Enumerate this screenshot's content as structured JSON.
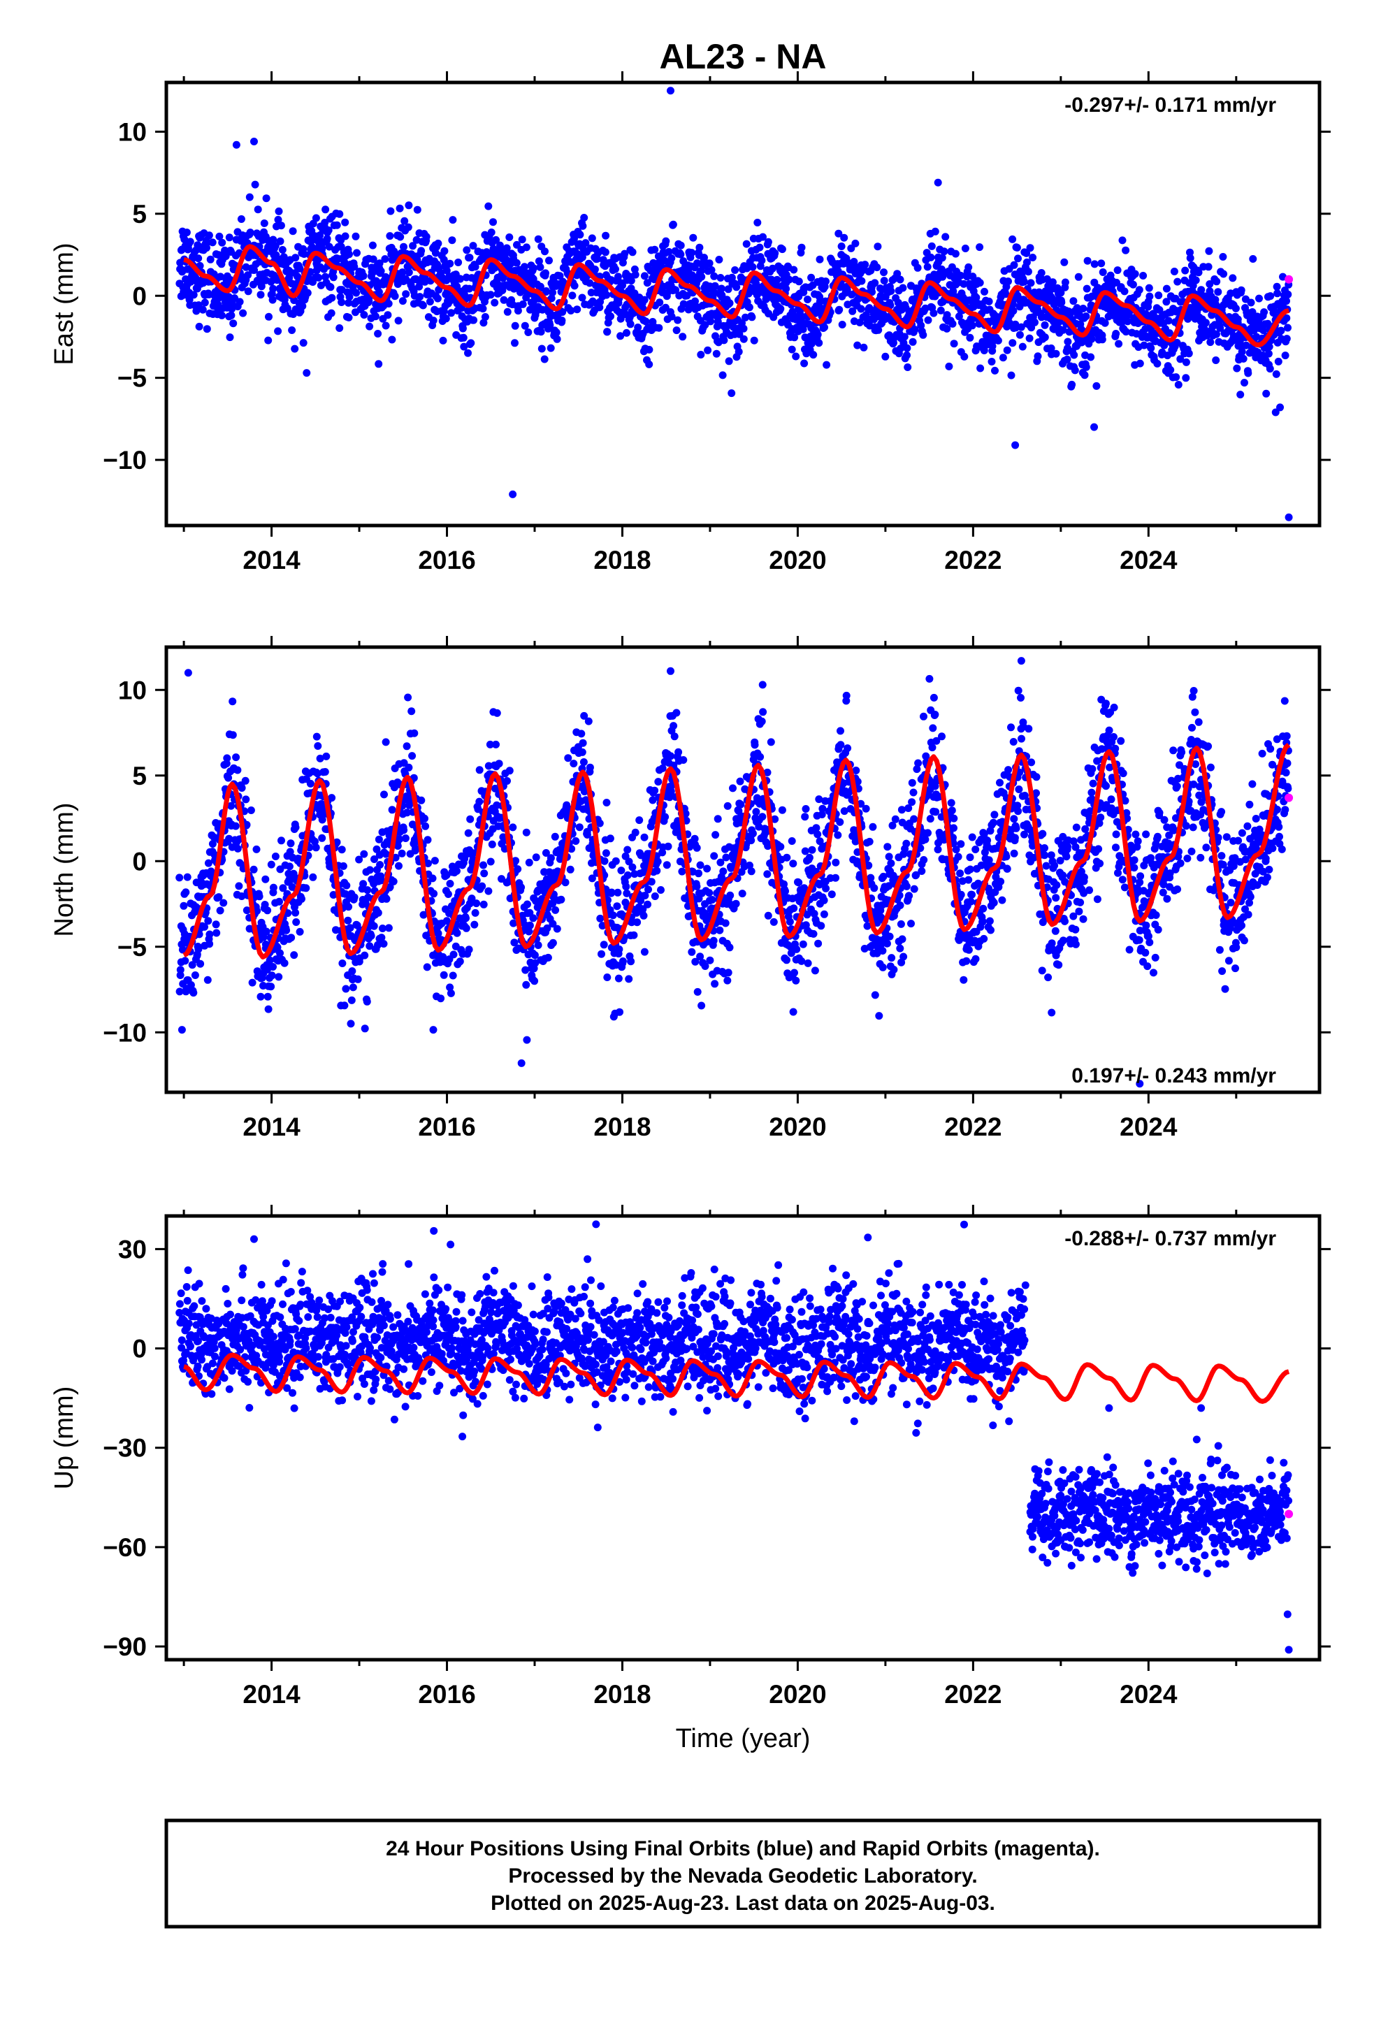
{
  "chart_data": {
    "type": "scatter",
    "title": "AL23 - NA",
    "colors": {
      "final": "#0000ff",
      "rapid": "#ff00ff",
      "model": "#ff0000"
    },
    "panels": [
      {
        "id": "east",
        "ylabel": "East (mm)",
        "ylim": [
          -14,
          13
        ],
        "yticks": [
          -10,
          -5,
          0,
          5,
          10
        ],
        "rate_text": "-0.297+/- 0.171 mm/yr",
        "rate_placement": "top-right",
        "model": {
          "name": "model",
          "x": [
            2013.0,
            2013.25,
            2013.5,
            2013.75,
            2014.0,
            2014.25,
            2014.5,
            2014.75,
            2015.0,
            2015.25,
            2015.5,
            2015.75,
            2016.0,
            2016.25,
            2016.5,
            2016.75,
            2017.0,
            2017.25,
            2017.5,
            2017.75,
            2018.0,
            2018.25,
            2018.5,
            2018.75,
            2019.0,
            2019.25,
            2019.5,
            2019.75,
            2020.0,
            2020.25,
            2020.5,
            2020.75,
            2021.0,
            2021.25,
            2021.5,
            2021.75,
            2022.0,
            2022.25,
            2022.5,
            2022.75,
            2023.0,
            2023.25,
            2023.5,
            2023.75,
            2024.0,
            2024.25,
            2024.5,
            2024.75,
            2025.0,
            2025.25,
            2025.6
          ],
          "y": [
            2.2,
            1.2,
            0.3,
            3.0,
            2.0,
            0.0,
            2.6,
            1.7,
            0.8,
            -0.3,
            2.4,
            1.4,
            0.5,
            -0.6,
            2.2,
            1.2,
            0.3,
            -0.8,
            1.9,
            0.9,
            0.0,
            -1.1,
            1.6,
            0.6,
            -0.3,
            -1.3,
            1.4,
            0.3,
            -0.5,
            -1.6,
            1.1,
            0.1,
            -0.8,
            -1.9,
            0.8,
            -0.2,
            -1.1,
            -2.2,
            0.5,
            -0.4,
            -1.3,
            -2.4,
            0.2,
            -0.6,
            -1.6,
            -2.7,
            0.0,
            -0.9,
            -1.9,
            -3.0,
            -0.9
          ]
        },
        "series": [
          {
            "name": "",
            "style": "final",
            "points": [
              [
                2016.75,
                -12.1
              ],
              [
                2018.55,
                12.5
              ],
              [
                2022.48,
                -9.1
              ],
              [
                2023.38,
                -8.0
              ],
              [
                2025.6,
                -13.5
              ],
              [
                2014.4,
                -4.7
              ],
              [
                2013.6,
                9.2
              ],
              [
                2013.8,
                9.4
              ],
              [
                2021.6,
                6.9
              ],
              [
                2025.45,
                -7.1
              ],
              [
                2025.5,
                -6.8
              ]
            ]
          },
          {
            "name": "",
            "style": "rapid",
            "points": [
              [
                2025.6,
                1.0
              ]
            ]
          }
        ],
        "scatter_band": {
          "x": [
            2012.95,
            2025.6
          ],
          "center_offset": 0.0,
          "spread": 1.4
        }
      },
      {
        "id": "north",
        "ylabel": "North (mm)",
        "ylim": [
          -13.5,
          12.5
        ],
        "yticks": [
          -10,
          -5,
          0,
          5,
          10
        ],
        "rate_text": "0.197+/- 0.243 mm/yr",
        "rate_placement": "bottom-right",
        "model": {
          "name": "model",
          "x": [
            2013.0,
            2013.3,
            2013.55,
            2013.9,
            2014.25,
            2014.55,
            2014.9,
            2015.25,
            2015.55,
            2015.9,
            2016.25,
            2016.55,
            2016.9,
            2017.25,
            2017.55,
            2017.9,
            2018.25,
            2018.55,
            2018.9,
            2019.25,
            2019.55,
            2019.9,
            2020.25,
            2020.55,
            2020.9,
            2021.25,
            2021.55,
            2021.9,
            2022.25,
            2022.55,
            2022.9,
            2023.25,
            2023.55,
            2023.9,
            2024.25,
            2024.55,
            2024.9,
            2025.25,
            2025.6
          ],
          "y": [
            -5.5,
            -2.0,
            4.5,
            -5.6,
            -2.0,
            4.7,
            -5.4,
            -1.8,
            4.9,
            -5.2,
            -1.6,
            5.1,
            -5.0,
            -1.4,
            5.2,
            -4.8,
            -1.2,
            5.4,
            -4.6,
            -1.0,
            5.6,
            -4.4,
            -0.8,
            5.9,
            -4.2,
            -0.6,
            6.1,
            -4.0,
            -0.4,
            6.2,
            -3.7,
            0.0,
            6.4,
            -3.5,
            0.2,
            6.6,
            -3.3,
            0.4,
            6.8
          ]
        },
        "series": [
          {
            "name": "",
            "style": "final",
            "points": [
              [
                2013.05,
                11.0
              ],
              [
                2018.55,
                11.1
              ],
              [
                2016.85,
                -11.8
              ],
              [
                2023.9,
                -13.0
              ],
              [
                2022.55,
                11.7
              ],
              [
                2019.6,
                10.3
              ]
            ]
          },
          {
            "name": "",
            "style": "rapid",
            "points": [
              [
                2025.6,
                3.7
              ]
            ]
          }
        ],
        "scatter_band": {
          "x": [
            2012.95,
            2025.6
          ],
          "center_offset": 0.0,
          "spread": 2.0
        }
      },
      {
        "id": "up",
        "ylabel": "Up (mm)",
        "ylim": [
          -94,
          40
        ],
        "yticks": [
          -90,
          -60,
          -30,
          0,
          30
        ],
        "rate_text": "-0.288+/- 0.737 mm/yr",
        "rate_placement": "top-right",
        "model": {
          "name": "model",
          "x": [
            2013.0,
            2013.25,
            2013.55,
            2013.8,
            2014.05,
            2014.3,
            2014.55,
            2014.8,
            2015.05,
            2015.3,
            2015.55,
            2015.8,
            2016.05,
            2016.3,
            2016.55,
            2016.8,
            2017.05,
            2017.3,
            2017.55,
            2017.8,
            2018.05,
            2018.3,
            2018.55,
            2018.8,
            2019.05,
            2019.3,
            2019.55,
            2019.8,
            2020.05,
            2020.3,
            2020.55,
            2020.8,
            2021.05,
            2021.3,
            2021.55,
            2021.8,
            2022.05,
            2022.3,
            2022.55,
            2022.8,
            2023.05,
            2023.3,
            2023.55,
            2023.8,
            2024.05,
            2024.3,
            2024.55,
            2024.8,
            2025.05,
            2025.3,
            2025.6
          ],
          "y": [
            -5.5,
            -12.5,
            -2.0,
            -6.0,
            -13.0,
            -2.5,
            -6.5,
            -13.2,
            -2.7,
            -6.8,
            -13.4,
            -2.9,
            -7.0,
            -13.6,
            -3.1,
            -7.2,
            -13.8,
            -3.3,
            -7.4,
            -14.0,
            -3.5,
            -7.6,
            -14.2,
            -3.7,
            -7.8,
            -14.4,
            -3.9,
            -8.0,
            -14.6,
            -4.1,
            -8.2,
            -14.8,
            -4.3,
            -8.4,
            -15.0,
            -4.5,
            -8.6,
            -15.2,
            -4.7,
            -8.8,
            -15.4,
            -4.9,
            -9.0,
            -15.6,
            -5.1,
            -9.2,
            -15.8,
            -5.3,
            -9.4,
            -16.0,
            -7.0
          ]
        },
        "series": [
          {
            "name": "",
            "style": "final",
            "points": [
              [
                2017.7,
                37.5
              ],
              [
                2015.85,
                35.5
              ],
              [
                2020.8,
                33.5
              ],
              [
                2013.8,
                33.0
              ],
              [
                2021.35,
                -25.5
              ],
              [
                2023.55,
                -18.0
              ],
              [
                2024.6,
                -18.0
              ],
              [
                2025.6,
                -91.0
              ],
              [
                2024.55,
                -27.5
              ]
            ]
          },
          {
            "name": "",
            "style": "rapid",
            "points": [
              [
                2025.6,
                -50.0
              ]
            ]
          }
        ],
        "scatter_band": {
          "x": [
            2012.95,
            2022.6
          ],
          "center_offset": 2.0,
          "spread": 8.0
        },
        "scatter_band_2": {
          "x": [
            2022.65,
            2025.6
          ],
          "center_offset": -50.0,
          "spread": 6.5
        }
      }
    ],
    "xlim": [
      2012.8,
      2025.95
    ],
    "xticks": [
      2014,
      2016,
      2018,
      2020,
      2022,
      2024
    ],
    "xlabel": "Time (year)"
  },
  "footer": {
    "line1": "24 Hour Positions Using Final Orbits (blue) and Rapid Orbits (magenta).",
    "line2": "Processed by the Nevada Geodetic Laboratory.",
    "line3": "Plotted on 2025-Aug-23. Last data on 2025-Aug-03."
  }
}
